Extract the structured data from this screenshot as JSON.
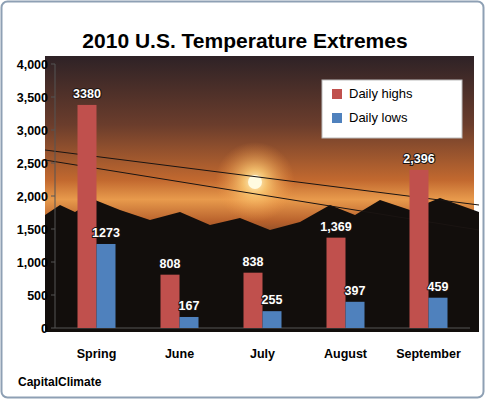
{
  "chart_data": {
    "type": "bar",
    "title": "2010 U.S. Temperature Extremes",
    "categories": [
      "Spring",
      "June",
      "July",
      "August",
      "September"
    ],
    "series": [
      {
        "name": "Daily highs",
        "color": "#c0504d",
        "values": [
          3380,
          808,
          838,
          1369,
          2396
        ],
        "value_labels": [
          "3380",
          "808",
          "838",
          "1,369",
          "2,396"
        ]
      },
      {
        "name": "Daily lows",
        "color": "#4f81bd",
        "values": [
          1273,
          167,
          255,
          397,
          459
        ]
      }
    ],
    "ylim": [
      0,
      4000
    ],
    "yticks": [
      0,
      500,
      {
        "value": 1000,
        "label": "1,000"
      },
      {
        "value": 1500,
        "label": "1,500"
      },
      {
        "value": 2000,
        "label": "2,000"
      },
      {
        "value": 2500,
        "label": "2,500"
      },
      {
        "value": 3000,
        "label": "3,000"
      },
      {
        "value": 3500,
        "label": "3,500"
      },
      {
        "value": 4000,
        "label": "4,000"
      }
    ],
    "grid": false,
    "legend": "upper right",
    "data_labels": true,
    "annotations": [
      "CapitalClimate"
    ]
  }
}
